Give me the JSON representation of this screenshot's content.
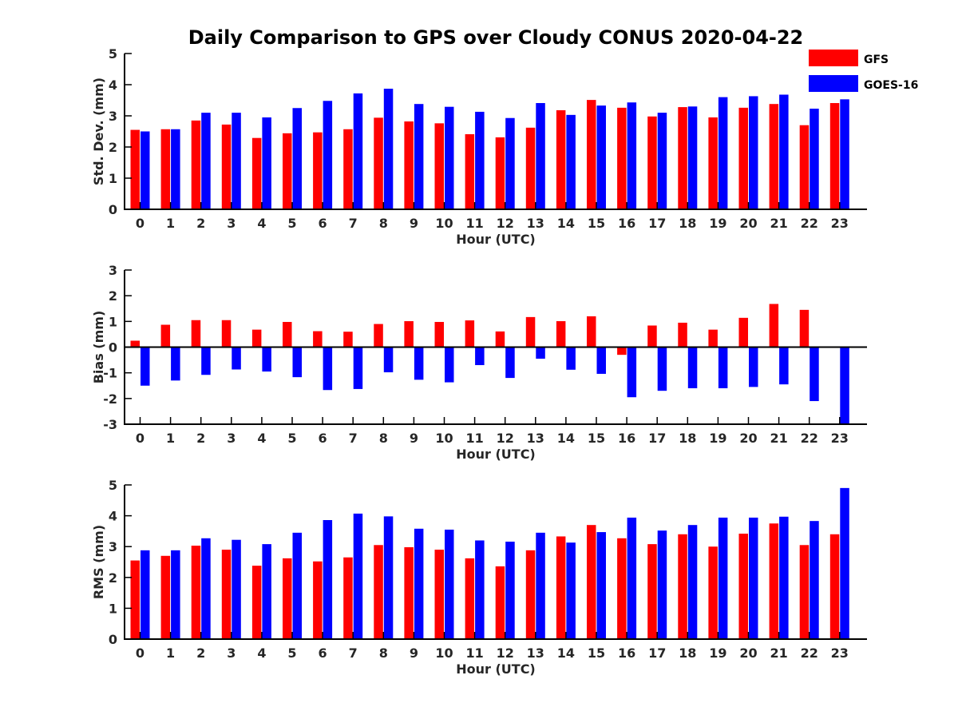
{
  "title": "Daily Comparison to GPS over Cloudy CONUS 2020-04-22",
  "legend": {
    "placement": "top-right",
    "items": [
      {
        "label": "GFS",
        "color": "#ff0000"
      },
      {
        "label": "GOES-16",
        "color": "#0000ff"
      }
    ]
  },
  "chart_data": [
    {
      "type": "bar",
      "xlabel": "Hour (UTC)",
      "ylabel": "Std. Dev. (mm)",
      "ylim": [
        0,
        5
      ],
      "yticks": [
        0,
        1,
        2,
        3,
        4,
        5
      ],
      "categories": [
        "0",
        "1",
        "2",
        "3",
        "4",
        "5",
        "6",
        "7",
        "8",
        "9",
        "10",
        "11",
        "12",
        "13",
        "14",
        "15",
        "16",
        "17",
        "18",
        "19",
        "20",
        "21",
        "22",
        "23"
      ],
      "series": [
        {
          "name": "GFS",
          "color": "#ff0000",
          "values": [
            2.55,
            2.57,
            2.85,
            2.72,
            2.29,
            2.44,
            2.47,
            2.57,
            2.94,
            2.82,
            2.76,
            2.41,
            2.31,
            2.62,
            3.18,
            3.51,
            3.26,
            2.98,
            3.28,
            2.95,
            3.26,
            3.38,
            2.7,
            3.41
          ]
        },
        {
          "name": "GOES-16",
          "color": "#0000ff",
          "values": [
            2.5,
            2.57,
            3.1,
            3.1,
            2.95,
            3.25,
            3.48,
            3.72,
            3.87,
            3.38,
            3.29,
            3.13,
            2.93,
            3.41,
            3.03,
            3.33,
            3.43,
            3.1,
            3.3,
            3.6,
            3.63,
            3.68,
            3.23,
            3.53
          ]
        }
      ]
    },
    {
      "type": "bar",
      "xlabel": "Hour (UTC)",
      "ylabel": "Bias (mm)",
      "ylim": [
        -3,
        3
      ],
      "yticks": [
        -3,
        -2,
        -1,
        0,
        1,
        2,
        3
      ],
      "categories": [
        "0",
        "1",
        "2",
        "3",
        "4",
        "5",
        "6",
        "7",
        "8",
        "9",
        "10",
        "11",
        "12",
        "13",
        "14",
        "15",
        "16",
        "17",
        "18",
        "19",
        "20",
        "21",
        "22",
        "23"
      ],
      "series": [
        {
          "name": "GFS",
          "color": "#ff0000",
          "values": [
            0.25,
            0.87,
            1.05,
            1.05,
            0.68,
            0.98,
            0.62,
            0.6,
            0.9,
            1.01,
            0.98,
            1.04,
            0.61,
            1.17,
            1.01,
            1.2,
            -0.3,
            0.84,
            0.95,
            0.68,
            1.14,
            1.68,
            1.45,
            -0.02
          ]
        },
        {
          "name": "GOES-16",
          "color": "#0000ff",
          "values": [
            -1.5,
            -1.3,
            -1.08,
            -0.87,
            -0.95,
            -1.17,
            -1.67,
            -1.63,
            -0.98,
            -1.27,
            -1.37,
            -0.7,
            -1.2,
            -0.45,
            -0.88,
            -1.04,
            -1.95,
            -1.7,
            -1.6,
            -1.6,
            -1.55,
            -1.45,
            -2.1,
            -3.0
          ]
        }
      ]
    },
    {
      "type": "bar",
      "xlabel": "Hour (UTC)",
      "ylabel": "RMS (mm)",
      "ylim": [
        0,
        5
      ],
      "yticks": [
        0,
        1,
        2,
        3,
        4,
        5
      ],
      "categories": [
        "0",
        "1",
        "2",
        "3",
        "4",
        "5",
        "6",
        "7",
        "8",
        "9",
        "10",
        "11",
        "12",
        "13",
        "14",
        "15",
        "16",
        "17",
        "18",
        "19",
        "20",
        "21",
        "22",
        "23"
      ],
      "series": [
        {
          "name": "GFS",
          "color": "#ff0000",
          "values": [
            2.55,
            2.7,
            3.03,
            2.9,
            2.38,
            2.62,
            2.52,
            2.65,
            3.05,
            2.98,
            2.9,
            2.62,
            2.36,
            2.88,
            3.33,
            3.7,
            3.27,
            3.08,
            3.4,
            3.0,
            3.42,
            3.75,
            3.05,
            3.4
          ]
        },
        {
          "name": "GOES-16",
          "color": "#0000ff",
          "values": [
            2.88,
            2.88,
            3.27,
            3.22,
            3.08,
            3.45,
            3.86,
            4.07,
            3.98,
            3.58,
            3.55,
            3.2,
            3.16,
            3.45,
            3.13,
            3.47,
            3.94,
            3.52,
            3.7,
            3.94,
            3.94,
            3.97,
            3.83,
            4.9
          ]
        }
      ]
    }
  ]
}
